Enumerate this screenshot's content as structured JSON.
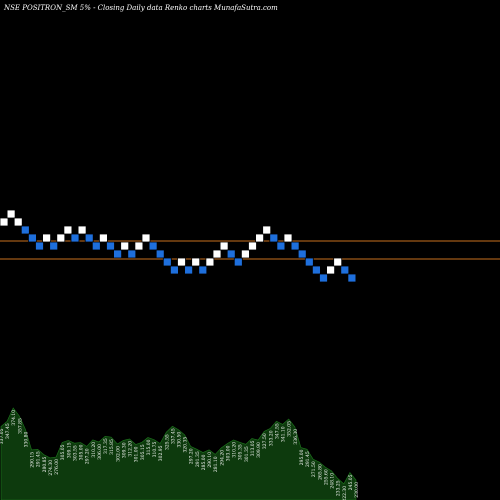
{
  "chart_data": {
    "type": "renko",
    "title": "NSE POSITRON_SM 5% - Closing Daily data Renko charts MunafaSutra.com",
    "brick_size_label": "5%",
    "colors": {
      "background": "#000000",
      "up_brick": "#ffffff",
      "down_brick": "#1e6fdc",
      "brick_border": "#000000",
      "reference_line": "#c8701e",
      "volume_fill": "#0d3a0d",
      "volume_stroke": "#1f7a1f"
    },
    "grid": false,
    "reference_levels": [
      {
        "price_level": 241
      },
      {
        "price_level": 259
      }
    ],
    "bricks": [
      {
        "n": 0,
        "level": 1,
        "dir": "up"
      },
      {
        "n": 1,
        "level": 0,
        "dir": "up"
      },
      {
        "n": 2,
        "level": 1,
        "dir": "up"
      },
      {
        "n": 3,
        "level": 2,
        "dir": "down"
      },
      {
        "n": 4,
        "level": 3,
        "dir": "down"
      },
      {
        "n": 5,
        "level": 4,
        "dir": "down"
      },
      {
        "n": 6,
        "level": 3,
        "dir": "up"
      },
      {
        "n": 7,
        "level": 4,
        "dir": "down"
      },
      {
        "n": 8,
        "level": 3,
        "dir": "up"
      },
      {
        "n": 9,
        "level": 2,
        "dir": "up"
      },
      {
        "n": 10,
        "level": 3,
        "dir": "down"
      },
      {
        "n": 11,
        "level": 2,
        "dir": "up"
      },
      {
        "n": 12,
        "level": 3,
        "dir": "down"
      },
      {
        "n": 13,
        "level": 4,
        "dir": "down"
      },
      {
        "n": 14,
        "level": 3,
        "dir": "up"
      },
      {
        "n": 15,
        "level": 4,
        "dir": "down"
      },
      {
        "n": 16,
        "level": 5,
        "dir": "down"
      },
      {
        "n": 17,
        "level": 4,
        "dir": "up"
      },
      {
        "n": 18,
        "level": 5,
        "dir": "down"
      },
      {
        "n": 19,
        "level": 4,
        "dir": "up"
      },
      {
        "n": 20,
        "level": 3,
        "dir": "up"
      },
      {
        "n": 21,
        "level": 4,
        "dir": "down"
      },
      {
        "n": 22,
        "level": 5,
        "dir": "down"
      },
      {
        "n": 23,
        "level": 6,
        "dir": "down"
      },
      {
        "n": 24,
        "level": 7,
        "dir": "down"
      },
      {
        "n": 25,
        "level": 6,
        "dir": "up"
      },
      {
        "n": 26,
        "level": 7,
        "dir": "down"
      },
      {
        "n": 27,
        "level": 6,
        "dir": "up"
      },
      {
        "n": 28,
        "level": 7,
        "dir": "down"
      },
      {
        "n": 29,
        "level": 6,
        "dir": "up"
      },
      {
        "n": 30,
        "level": 5,
        "dir": "up"
      },
      {
        "n": 31,
        "level": 4,
        "dir": "up"
      },
      {
        "n": 32,
        "level": 5,
        "dir": "down"
      },
      {
        "n": 33,
        "level": 6,
        "dir": "down"
      },
      {
        "n": 34,
        "level": 5,
        "dir": "up"
      },
      {
        "n": 35,
        "level": 4,
        "dir": "up"
      },
      {
        "n": 36,
        "level": 3,
        "dir": "up"
      },
      {
        "n": 37,
        "level": 2,
        "dir": "up"
      },
      {
        "n": 38,
        "level": 3,
        "dir": "down"
      },
      {
        "n": 39,
        "level": 4,
        "dir": "down"
      },
      {
        "n": 40,
        "level": 3,
        "dir": "up"
      },
      {
        "n": 41,
        "level": 4,
        "dir": "down"
      },
      {
        "n": 42,
        "level": 5,
        "dir": "down"
      },
      {
        "n": 43,
        "level": 6,
        "dir": "down"
      },
      {
        "n": 44,
        "level": 7,
        "dir": "down"
      },
      {
        "n": 45,
        "level": 8,
        "dir": "down"
      },
      {
        "n": 46,
        "level": 7,
        "dir": "up"
      },
      {
        "n": 47,
        "level": 6,
        "dir": "up"
      },
      {
        "n": 48,
        "level": 7,
        "dir": "down"
      },
      {
        "n": 49,
        "level": 8,
        "dir": "down"
      }
    ],
    "volume_labels": [
      "337.05",
      "347.45",
      "374.10",
      "357.85",
      "330.80",
      "290.15",
      "291.45",
      "280.85",
      "274.30",
      "276.00",
      "305.05",
      "309.15",
      "303.55",
      "305.00",
      "297.20",
      "310.20",
      "306.00",
      "317.35",
      "315.85",
      "302.00",
      "309.30",
      "312.20",
      "301.00",
      "305.15",
      "315.00",
      "310.75",
      "302.95",
      "325.55",
      "337.45",
      "330.50",
      "320.35",
      "297.20",
      "291.35",
      "285.00",
      "290.10",
      "281.10",
      "294.20",
      "303.00",
      "310.20",
      "305.35",
      "301.35",
      "313.05",
      "309.90",
      "327.50",
      "333.20",
      "347.55",
      "341.10",
      "352.05",
      "336.30",
      "295.00",
      "291.45",
      "271.50",
      "265.80",
      "255.60",
      "248.10",
      "233.25",
      "222.30",
      "245.05",
      "230.00"
    ]
  }
}
